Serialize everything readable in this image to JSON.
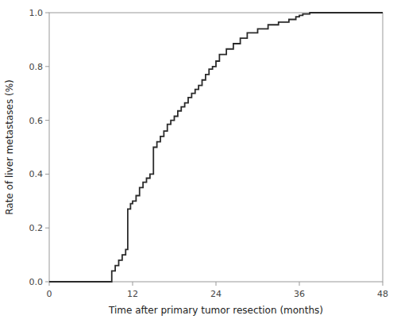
{
  "chart_data": {
    "type": "step",
    "xlabel": "Time after primary tumor resection (months)",
    "ylabel": "Rate of liver metastases (%)",
    "x": [
      0,
      8.0,
      9.0,
      9.5,
      10.0,
      10.5,
      11.0,
      11.3,
      11.7,
      12.0,
      12.5,
      13.0,
      13.5,
      14.0,
      14.5,
      15.0,
      15.5,
      16.0,
      16.5,
      17.0,
      17.5,
      18.0,
      18.5,
      19.0,
      19.5,
      20.0,
      20.5,
      21.0,
      21.5,
      22.0,
      22.5,
      23.0,
      23.5,
      24.0,
      24.5,
      25.5,
      26.5,
      27.5,
      28.5,
      30.0,
      31.5,
      33.0,
      34.5,
      35.5,
      36.0,
      36.5,
      37.5,
      48
    ],
    "values": [
      0.0,
      0.0,
      0.04,
      0.06,
      0.08,
      0.1,
      0.12,
      0.27,
      0.29,
      0.3,
      0.32,
      0.35,
      0.37,
      0.385,
      0.4,
      0.5,
      0.52,
      0.54,
      0.56,
      0.585,
      0.6,
      0.615,
      0.635,
      0.65,
      0.665,
      0.685,
      0.7,
      0.715,
      0.73,
      0.75,
      0.77,
      0.79,
      0.8,
      0.82,
      0.845,
      0.865,
      0.885,
      0.905,
      0.925,
      0.94,
      0.955,
      0.965,
      0.975,
      0.985,
      0.99,
      0.995,
      1.0,
      1.0
    ],
    "color": "#2a2a2a",
    "xlim": [
      0,
      48
    ],
    "ylim": [
      0.0,
      1.0
    ],
    "xticks": [
      0,
      12,
      24,
      36,
      48
    ],
    "yticks": [
      {
        "value": 0.0,
        "label": "0.0"
      },
      0.2,
      0.4,
      0.6,
      0.8,
      {
        "value": 1.0,
        "label": "1.0"
      }
    ]
  }
}
